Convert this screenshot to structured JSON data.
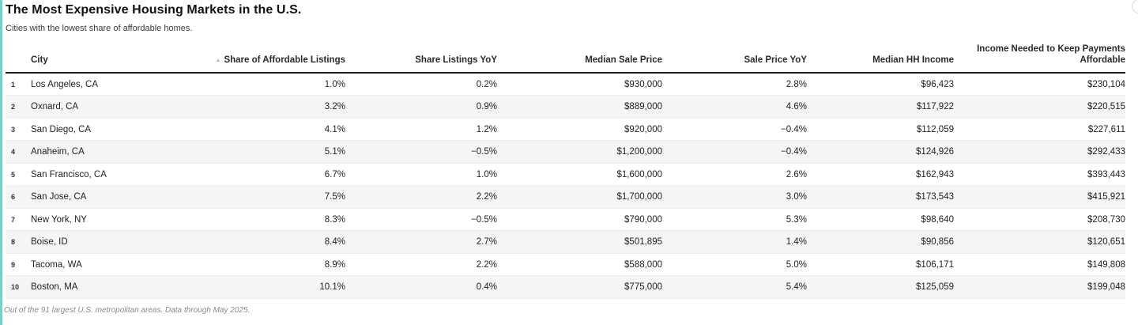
{
  "page": {
    "title": "The Most Expensive Housing Markets in the U.S.",
    "subtitle": "Cities with the lowest share of affordable homes.",
    "footnote": "Out of the 91 largest U.S. metropolitan areas. Data through May 2025."
  },
  "icons": {
    "sort_ascending": "▲"
  },
  "colors": {
    "accent_teal": "#6fd4cc",
    "header_border": "#1f1f1f",
    "alt_row_background": "#f5f5f6"
  },
  "chart_data": {
    "type": "table",
    "title": "The Most Expensive Housing Markets in the U.S.",
    "subtitle": "Cities with the lowest share of affordable homes.",
    "footnote": "Out of the 91 largest U.S. metropolitan areas. Data through May 2025.",
    "sorted_by": "Share of Affordable Listings",
    "sort_direction": "ascending",
    "columns": [
      {
        "label": "City",
        "align": "left"
      },
      {
        "label": "Share of Affordable Listings",
        "align": "right",
        "sorted": true
      },
      {
        "label": "Share Listings YoY",
        "align": "right"
      },
      {
        "label": "Median Sale Price",
        "align": "right"
      },
      {
        "label": "Sale Price YoY",
        "align": "right"
      },
      {
        "label": "Median HH Income",
        "align": "right"
      },
      {
        "label": "Income Needed to Keep Payments Affordable",
        "align": "right"
      }
    ],
    "rows": [
      {
        "rank": "1",
        "city": "Los Angeles, CA",
        "share_affordable": "1.0%",
        "share_yoy": "0.2%",
        "median_sale_price": "$930,000",
        "sale_price_yoy": "2.8%",
        "median_hh_income": "$96,423",
        "income_needed": "$230,104"
      },
      {
        "rank": "2",
        "city": "Oxnard, CA",
        "share_affordable": "3.2%",
        "share_yoy": "0.9%",
        "median_sale_price": "$889,000",
        "sale_price_yoy": "4.6%",
        "median_hh_income": "$117,922",
        "income_needed": "$220,515"
      },
      {
        "rank": "3",
        "city": "San Diego, CA",
        "share_affordable": "4.1%",
        "share_yoy": "1.2%",
        "median_sale_price": "$920,000",
        "sale_price_yoy": "−0.4%",
        "median_hh_income": "$112,059",
        "income_needed": "$227,611"
      },
      {
        "rank": "4",
        "city": "Anaheim, CA",
        "share_affordable": "5.1%",
        "share_yoy": "−0.5%",
        "median_sale_price": "$1,200,000",
        "sale_price_yoy": "−0.4%",
        "median_hh_income": "$124,926",
        "income_needed": "$292,433"
      },
      {
        "rank": "5",
        "city": "San Francisco, CA",
        "share_affordable": "6.7%",
        "share_yoy": "1.0%",
        "median_sale_price": "$1,600,000",
        "sale_price_yoy": "2.6%",
        "median_hh_income": "$162,943",
        "income_needed": "$393,443"
      },
      {
        "rank": "6",
        "city": "San Jose, CA",
        "share_affordable": "7.5%",
        "share_yoy": "2.2%",
        "median_sale_price": "$1,700,000",
        "sale_price_yoy": "3.0%",
        "median_hh_income": "$173,543",
        "income_needed": "$415,921"
      },
      {
        "rank": "7",
        "city": "New York, NY",
        "share_affordable": "8.3%",
        "share_yoy": "−0.5%",
        "median_sale_price": "$790,000",
        "sale_price_yoy": "5.3%",
        "median_hh_income": "$98,640",
        "income_needed": "$208,730"
      },
      {
        "rank": "8",
        "city": "Boise, ID",
        "share_affordable": "8.4%",
        "share_yoy": "2.7%",
        "median_sale_price": "$501,895",
        "sale_price_yoy": "1.4%",
        "median_hh_income": "$90,856",
        "income_needed": "$120,651"
      },
      {
        "rank": "9",
        "city": "Tacoma, WA",
        "share_affordable": "8.9%",
        "share_yoy": "2.2%",
        "median_sale_price": "$588,000",
        "sale_price_yoy": "5.0%",
        "median_hh_income": "$106,171",
        "income_needed": "$149,808"
      },
      {
        "rank": "10",
        "city": "Boston, MA",
        "share_affordable": "10.1%",
        "share_yoy": "0.4%",
        "median_sale_price": "$775,000",
        "sale_price_yoy": "5.4%",
        "median_hh_income": "$125,059",
        "income_needed": "$199,048"
      }
    ]
  }
}
